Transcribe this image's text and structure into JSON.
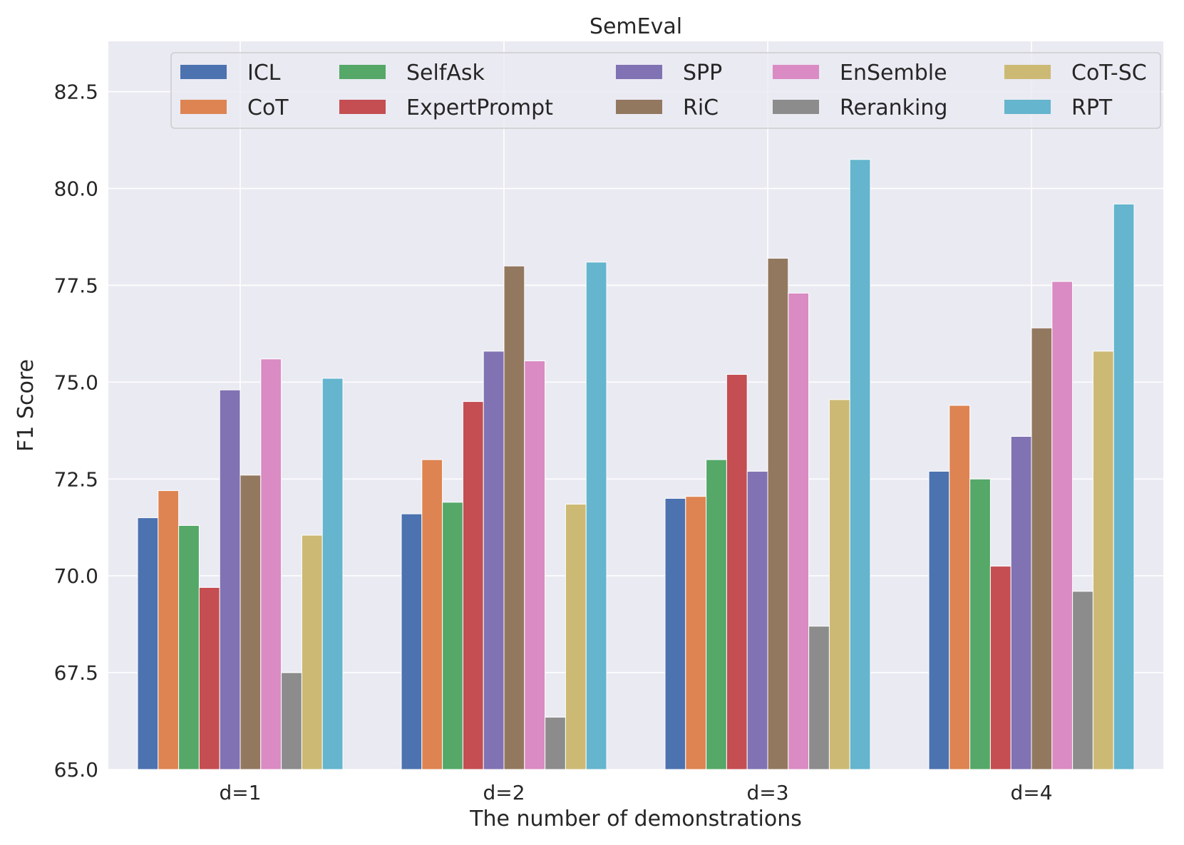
{
  "chart_data": {
    "type": "bar",
    "title": "SemEval",
    "xlabel": "The number of demonstrations",
    "ylabel": "F1 Score",
    "ylim": [
      65.0,
      83.8
    ],
    "yticks": [
      "65.0",
      "67.5",
      "70.0",
      "72.5",
      "75.0",
      "77.5",
      "80.0",
      "82.5"
    ],
    "categories": [
      "d=1",
      "d=2",
      "d=3",
      "d=4"
    ],
    "grid": true,
    "legend_position": "top",
    "series": [
      {
        "name": "ICL",
        "color": "#4c72b0",
        "values": [
          71.5,
          71.6,
          72.0,
          72.7
        ]
      },
      {
        "name": "CoT",
        "color": "#dd8452",
        "values": [
          72.2,
          73.0,
          72.05,
          74.4
        ]
      },
      {
        "name": "SelfAsk",
        "color": "#55a868",
        "values": [
          71.3,
          71.9,
          73.0,
          72.5
        ]
      },
      {
        "name": "ExpertPrompt",
        "color": "#c44e52",
        "values": [
          69.7,
          74.5,
          75.2,
          70.25
        ]
      },
      {
        "name": "SPP",
        "color": "#8172b3",
        "values": [
          74.8,
          75.8,
          72.7,
          73.6
        ]
      },
      {
        "name": "RiC",
        "color": "#937860",
        "values": [
          72.6,
          78.0,
          78.2,
          76.4
        ]
      },
      {
        "name": "EnSemble",
        "color": "#da8bc3",
        "values": [
          75.6,
          75.55,
          77.3,
          77.6
        ]
      },
      {
        "name": "Reranking",
        "color": "#8c8c8c",
        "values": [
          67.5,
          66.35,
          68.7,
          69.6
        ]
      },
      {
        "name": "CoT-SC",
        "color": "#ccb974",
        "values": [
          71.05,
          71.85,
          74.55,
          75.8
        ]
      },
      {
        "name": "RPT",
        "color": "#64b5cd",
        "values": [
          75.1,
          78.1,
          80.75,
          79.6
        ]
      }
    ]
  }
}
